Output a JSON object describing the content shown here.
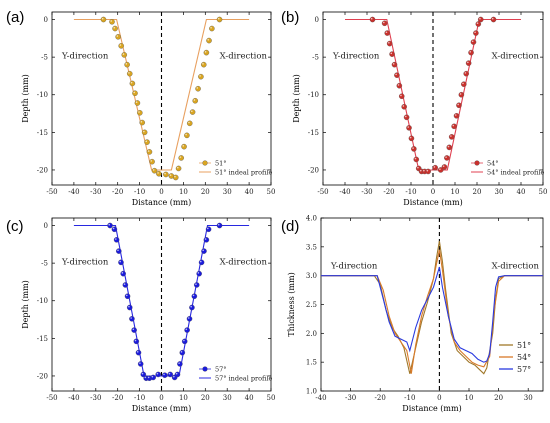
{
  "chart_data": [
    {
      "panel": "(a)",
      "type": "scatter",
      "xlabel": "Distance (mm)",
      "ylabel": "Depth (mm)",
      "xlim": [
        -50,
        50
      ],
      "ylim": [
        -22,
        1
      ],
      "xticks": [
        -50,
        -40,
        -30,
        -20,
        -10,
        0,
        10,
        20,
        30,
        40,
        50
      ],
      "yticks": [
        0,
        -5,
        -10,
        -15,
        -20
      ],
      "grid": false,
      "left_label": "Y-direction",
      "right_label": "X-direction",
      "legend_position": "bottom-right",
      "marker_color": "#d9a521",
      "line_color": "#e8a060",
      "series": [
        {
          "name": "51°",
          "kind": "points",
          "x": [
            -26.5,
            -22.6,
            -21.2,
            -19.8,
            -18.4,
            -17.0,
            -15.7,
            -14.5,
            -13.3,
            -12.1,
            -11.0,
            -9.9,
            -8.8,
            -7.7,
            -6.6,
            -5.5,
            -4.3,
            -3.2,
            -1.2,
            2.0,
            4.5,
            6.5,
            7.8,
            9.0,
            10.3,
            11.6,
            12.9,
            14.2,
            15.4,
            16.7,
            18.0,
            19.3,
            20.5,
            21.7,
            23.0,
            26.5
          ],
          "y": [
            0.0,
            -0.3,
            -1.2,
            -2.3,
            -3.5,
            -4.7,
            -6.0,
            -7.2,
            -8.5,
            -9.8,
            -11.1,
            -12.4,
            -13.7,
            -15.0,
            -16.3,
            -17.6,
            -18.9,
            -20.1,
            -20.5,
            -20.6,
            -20.8,
            -21.0,
            -19.8,
            -18.4,
            -16.9,
            -15.4,
            -13.8,
            -12.3,
            -10.8,
            -9.2,
            -7.6,
            -6.0,
            -4.4,
            -2.8,
            -1.2,
            0.0
          ]
        },
        {
          "name": "51° indeal profile",
          "kind": "line",
          "x": [
            -40,
            -20.5,
            -4.5,
            4.5,
            20.5,
            40
          ],
          "y": [
            0,
            0,
            -20,
            -20,
            0,
            0
          ]
        }
      ]
    },
    {
      "panel": "(b)",
      "type": "scatter",
      "xlabel": "Distance (mm)",
      "ylabel": "Depth (mm)",
      "xlim": [
        -50,
        50
      ],
      "ylim": [
        -22,
        1
      ],
      "xticks": [
        -50,
        -40,
        -30,
        -20,
        -10,
        0,
        10,
        20,
        30,
        40,
        50
      ],
      "yticks": [
        0,
        -5,
        -10,
        -15,
        -20
      ],
      "grid": false,
      "left_label": "Y-direction",
      "right_label": "X-direction",
      "legend_position": "bottom-right",
      "marker_color": "#c9302c",
      "line_color": "#e04050",
      "series": [
        {
          "name": "54°",
          "kind": "points",
          "x": [
            -27.5,
            -22.0,
            -20.8,
            -19.7,
            -18.6,
            -17.5,
            -16.4,
            -15.3,
            -14.2,
            -13.1,
            -12.0,
            -10.9,
            -9.8,
            -8.7,
            -7.6,
            -6.5,
            -5.2,
            -3.8,
            -2.2,
            1.0,
            3.5,
            5.2,
            6.3,
            7.4,
            8.5,
            9.6,
            10.7,
            11.8,
            12.9,
            14.0,
            15.1,
            16.2,
            17.3,
            18.4,
            19.5,
            20.6,
            21.7,
            27.5
          ],
          "y": [
            0.0,
            -0.5,
            -1.8,
            -3.2,
            -4.6,
            -6.0,
            -7.4,
            -8.8,
            -10.2,
            -11.6,
            -13.0,
            -14.4,
            -15.8,
            -17.2,
            -18.6,
            -19.8,
            -20.2,
            -20.2,
            -20.2,
            -19.7,
            -20.0,
            -19.6,
            -18.4,
            -17.0,
            -15.6,
            -14.2,
            -12.8,
            -11.4,
            -10.0,
            -8.6,
            -7.2,
            -5.8,
            -4.4,
            -3.0,
            -1.8,
            -0.6,
            0.0,
            0.0
          ]
        },
        {
          "name": "54° indeal profile",
          "kind": "line",
          "x": [
            -40,
            -21,
            -6.5,
            6.5,
            21,
            40
          ],
          "y": [
            0,
            0,
            -20,
            -20,
            0,
            0
          ]
        }
      ]
    },
    {
      "panel": "(c)",
      "type": "scatter",
      "xlabel": "Distance (mm)",
      "ylabel": "Depth (mm)",
      "xlim": [
        -50,
        50
      ],
      "ylim": [
        -22,
        1
      ],
      "xticks": [
        -50,
        -40,
        -30,
        -20,
        -10,
        0,
        10,
        20,
        30,
        40,
        50
      ],
      "yticks": [
        0,
        -5,
        -10,
        -15,
        -20
      ],
      "grid": false,
      "left_label": "Y-direction",
      "right_label": "X-direction",
      "legend_position": "bottom-right",
      "marker_color": "#1a1adc",
      "line_color": "#2828e0",
      "series": [
        {
          "name": "57°",
          "kind": "points",
          "x": [
            -23.5,
            -21.5,
            -20.5,
            -19.5,
            -18.5,
            -17.5,
            -16.5,
            -15.5,
            -14.5,
            -13.5,
            -12.5,
            -11.5,
            -10.5,
            -9.5,
            -8.3,
            -7.0,
            -5.5,
            -3.8,
            -1.5,
            1.5,
            4.0,
            6.0,
            7.3,
            8.4,
            9.5,
            10.6,
            11.7,
            12.8,
            13.9,
            15.0,
            16.1,
            17.2,
            18.3,
            19.4,
            20.5,
            21.5,
            26.5
          ],
          "y": [
            0.0,
            -0.5,
            -1.9,
            -3.4,
            -4.9,
            -6.4,
            -7.9,
            -9.4,
            -10.9,
            -12.4,
            -13.9,
            -15.4,
            -16.9,
            -18.4,
            -19.8,
            -20.3,
            -20.3,
            -20.2,
            -19.8,
            -19.9,
            -19.8,
            -20.2,
            -19.8,
            -18.4,
            -16.9,
            -15.4,
            -13.9,
            -12.4,
            -10.9,
            -9.4,
            -7.9,
            -6.4,
            -4.9,
            -3.4,
            -1.9,
            -0.5,
            0.0
          ]
        },
        {
          "name": "57° indeal profile",
          "kind": "line",
          "x": [
            -40,
            -21,
            -8,
            8,
            21,
            40
          ],
          "y": [
            0,
            0,
            -20,
            -20,
            0,
            0
          ]
        }
      ]
    },
    {
      "panel": "(d)",
      "type": "line",
      "xlabel": "Distance (mm)",
      "ylabel": "Thickness (mm)",
      "xlim": [
        -40,
        35
      ],
      "ylim": [
        1.0,
        4.0
      ],
      "xticks": [
        -40,
        -30,
        -20,
        -10,
        0,
        10,
        20,
        30
      ],
      "yticks": [
        1.0,
        1.5,
        2.0,
        2.5,
        3.0,
        3.5,
        4.0
      ],
      "grid": false,
      "left_label": "Y-direction",
      "right_label": "X-direction",
      "legend_position": "bottom-right",
      "series": [
        {
          "name": "51°",
          "color": "#a0782a",
          "x": [
            -40,
            -22,
            -20,
            -18,
            -16,
            -14,
            -12,
            -10,
            -8,
            -6,
            -4,
            -2,
            -1,
            0,
            1,
            2,
            4,
            6,
            8,
            10,
            12,
            14,
            15,
            16,
            18,
            19,
            20,
            22,
            35
          ],
          "y": [
            3.0,
            3.0,
            2.85,
            2.4,
            2.1,
            1.95,
            1.75,
            1.3,
            1.75,
            2.2,
            2.55,
            2.95,
            3.3,
            3.6,
            3.25,
            2.8,
            2.0,
            1.7,
            1.6,
            1.5,
            1.45,
            1.35,
            1.3,
            1.4,
            2.0,
            2.6,
            2.95,
            3.0,
            3.0
          ]
        },
        {
          "name": "54°",
          "color": "#d87a2a",
          "x": [
            -40,
            -21,
            -19,
            -17,
            -15,
            -13,
            -11,
            -9.5,
            -8,
            -6,
            -4,
            -2,
            0,
            1,
            3,
            5,
            7,
            9,
            11,
            13,
            15,
            17,
            18.5,
            20,
            22,
            35
          ],
          "y": [
            3.0,
            3.0,
            2.75,
            2.3,
            2.0,
            1.85,
            1.7,
            1.3,
            1.8,
            2.3,
            2.65,
            2.95,
            3.45,
            3.1,
            2.3,
            1.85,
            1.7,
            1.6,
            1.5,
            1.45,
            1.42,
            1.6,
            2.4,
            2.9,
            3.0,
            3.0
          ]
        },
        {
          "name": "57°",
          "color": "#2a3ae0",
          "x": [
            -40,
            -21,
            -19,
            -17,
            -15,
            -13,
            -11,
            -10,
            -8,
            -6,
            -4,
            -2,
            0,
            1,
            3,
            5,
            7,
            9,
            11,
            13,
            15,
            16,
            17,
            18,
            19,
            20,
            22,
            35
          ],
          "y": [
            3.0,
            3.0,
            2.6,
            2.2,
            1.95,
            1.9,
            1.85,
            1.7,
            2.1,
            2.4,
            2.6,
            2.8,
            3.15,
            2.8,
            2.3,
            1.9,
            1.75,
            1.7,
            1.65,
            1.55,
            1.5,
            1.52,
            1.65,
            2.2,
            2.8,
            2.98,
            3.0,
            3.0
          ]
        }
      ]
    }
  ]
}
